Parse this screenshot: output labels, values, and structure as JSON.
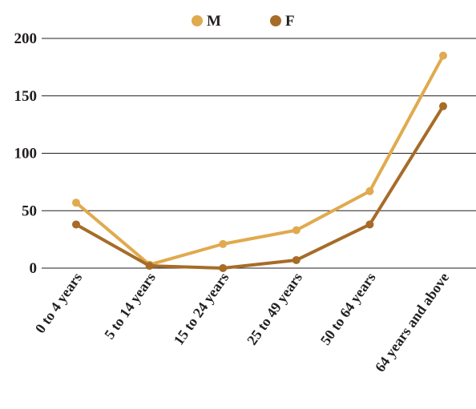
{
  "chart_data": {
    "type": "line",
    "title": "",
    "xlabel": "",
    "ylabel": "",
    "categories": [
      "0 to 4 years",
      "5 to 14 years",
      "15 to 24 years",
      "25 to 49 years",
      "50 to 64 years",
      "64 years and above"
    ],
    "ylim": [
      0,
      200
    ],
    "yticks": [
      0,
      50,
      100,
      150,
      200
    ],
    "grid": "horizontal",
    "legend_position": "top",
    "series": [
      {
        "name": "M",
        "color": "#e0aa4e",
        "values": [
          57,
          3,
          21,
          33,
          67,
          185
        ]
      },
      {
        "name": "F",
        "color": "#a66c28",
        "values": [
          38,
          2,
          0,
          7,
          38,
          141
        ]
      }
    ]
  }
}
